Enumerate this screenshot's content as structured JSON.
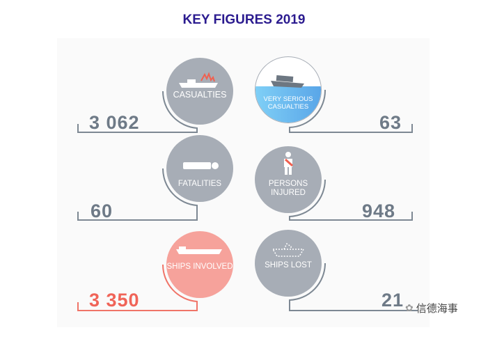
{
  "title": "KEY FIGURES 2019",
  "items": [
    {
      "label": "CASUALTIES",
      "value": "3 062",
      "icon": "ship-fire-icon",
      "color": "#a7adb6"
    },
    {
      "label": "VERY SERIOUS CASUALTIES",
      "value": "63",
      "icon": "sinking-ship-icon",
      "color": "#6fb8ee"
    },
    {
      "label": "FATALITIES",
      "value": "60",
      "icon": "lying-person-icon",
      "color": "#a7adb6"
    },
    {
      "label": "PERSONS INJURED",
      "value": "948",
      "icon": "injured-person-icon",
      "color": "#a7adb6"
    },
    {
      "label": "SHIPS INVOLVED",
      "value": "3 350",
      "icon": "ship-icon",
      "color": "#f6a29b"
    },
    {
      "label": "SHIPS LOST",
      "value": "21",
      "icon": "dashed-ship-icon",
      "color": "#a7adb6"
    }
  ],
  "watermark": "信德海事"
}
